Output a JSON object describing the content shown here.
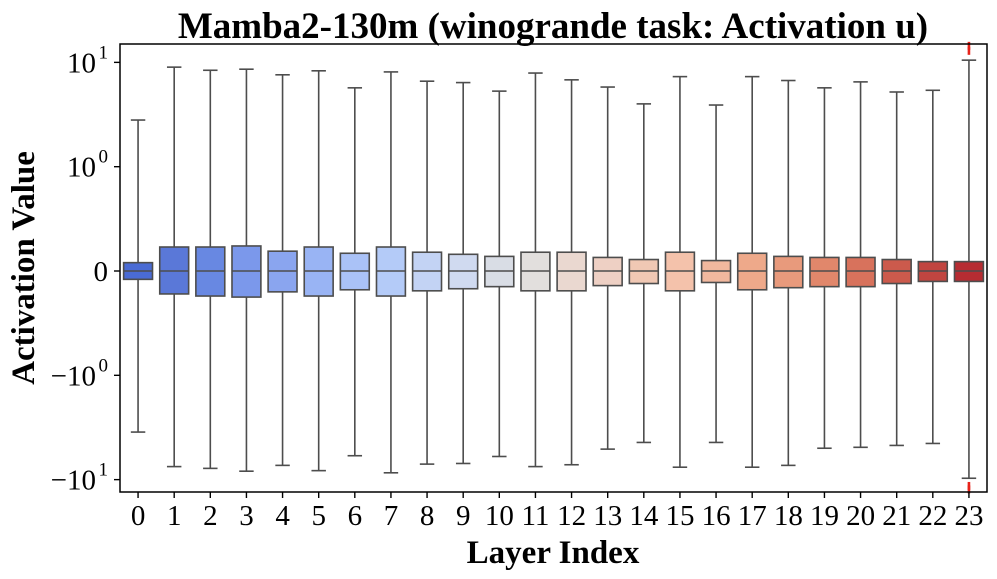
{
  "chart_data": {
    "type": "boxplot",
    "title": "Mamba2-130m (winogrande task: Activation u)",
    "xlabel": "Layer Index",
    "ylabel": "Activation Value",
    "yscale": "symlog",
    "symlog_linthresh": 1,
    "ylim": [
      -13,
      15
    ],
    "y_ticks": [
      {
        "value": 10,
        "base": "10",
        "exp": "1"
      },
      {
        "value": 1,
        "base": "10",
        "exp": "0"
      },
      {
        "value": 0,
        "base": "0",
        "exp": ""
      },
      {
        "value": -1,
        "base": "−10",
        "exp": "0"
      },
      {
        "value": -10,
        "base": "−10",
        "exp": "1"
      }
    ],
    "categories": [
      "0",
      "1",
      "2",
      "3",
      "4",
      "5",
      "6",
      "7",
      "8",
      "9",
      "10",
      "11",
      "12",
      "13",
      "14",
      "15",
      "16",
      "17",
      "18",
      "19",
      "20",
      "21",
      "22",
      "23"
    ],
    "colors": [
      "#4a6bd4",
      "#5a78d8",
      "#6888e2",
      "#7b98eb",
      "#8aa5ef",
      "#99b4f4",
      "#aac2f7",
      "#b4cbf8",
      "#c3d3f4",
      "#d0daf0",
      "#d9dde5",
      "#e2dfdd",
      "#ead8d0",
      "#eed0c4",
      "#f0c8b4",
      "#f4c2ab",
      "#f1b89e",
      "#eea98a",
      "#e89a7c",
      "#e1876b",
      "#d8725c",
      "#cc5a4c",
      "#c14540",
      "#b62c32"
    ],
    "boxes": [
      {
        "q1": -0.08,
        "median": 0.0,
        "q3": 0.08,
        "whisker_low": -3.5,
        "whisker_high": 2.8
      },
      {
        "q1": -0.22,
        "median": 0.0,
        "q3": 0.23,
        "whisker_low": -7.5,
        "whisker_high": 9.0
      },
      {
        "q1": -0.24,
        "median": 0.0,
        "q3": 0.23,
        "whisker_low": -7.8,
        "whisker_high": 8.4
      },
      {
        "q1": -0.25,
        "median": 0.0,
        "q3": 0.24,
        "whisker_low": -8.3,
        "whisker_high": 8.6
      },
      {
        "q1": -0.2,
        "median": 0.0,
        "q3": 0.19,
        "whisker_low": -7.3,
        "whisker_high": 7.6
      },
      {
        "q1": -0.24,
        "median": 0.0,
        "q3": 0.23,
        "whisker_low": -8.2,
        "whisker_high": 8.3
      },
      {
        "q1": -0.18,
        "median": 0.0,
        "q3": 0.17,
        "whisker_low": -5.9,
        "whisker_high": 5.7
      },
      {
        "q1": -0.24,
        "median": 0.0,
        "q3": 0.23,
        "whisker_low": -8.6,
        "whisker_high": 8.1
      },
      {
        "q1": -0.19,
        "median": 0.0,
        "q3": 0.18,
        "whisker_low": -7.1,
        "whisker_high": 6.6
      },
      {
        "q1": -0.17,
        "median": 0.0,
        "q3": 0.16,
        "whisker_low": -7.0,
        "whisker_high": 6.4
      },
      {
        "q1": -0.15,
        "median": 0.0,
        "q3": 0.14,
        "whisker_low": -6.0,
        "whisker_high": 5.3
      },
      {
        "q1": -0.19,
        "median": 0.0,
        "q3": 0.18,
        "whisker_low": -7.5,
        "whisker_high": 7.9
      },
      {
        "q1": -0.19,
        "median": 0.0,
        "q3": 0.18,
        "whisker_low": -7.2,
        "whisker_high": 6.8
      },
      {
        "q1": -0.14,
        "median": 0.0,
        "q3": 0.13,
        "whisker_low": -5.1,
        "whisker_high": 5.8
      },
      {
        "q1": -0.12,
        "median": 0.0,
        "q3": 0.11,
        "whisker_low": -4.4,
        "whisker_high": 4.0
      },
      {
        "q1": -0.19,
        "median": 0.0,
        "q3": 0.18,
        "whisker_low": -7.6,
        "whisker_high": 7.3
      },
      {
        "q1": -0.11,
        "median": 0.0,
        "q3": 0.1,
        "whisker_low": -4.4,
        "whisker_high": 3.9
      },
      {
        "q1": -0.18,
        "median": 0.0,
        "q3": 0.17,
        "whisker_low": -7.6,
        "whisker_high": 7.3
      },
      {
        "q1": -0.16,
        "median": 0.0,
        "q3": 0.14,
        "whisker_low": -7.3,
        "whisker_high": 6.7
      },
      {
        "q1": -0.15,
        "median": 0.0,
        "q3": 0.13,
        "whisker_low": -5.0,
        "whisker_high": 5.7
      },
      {
        "q1": -0.15,
        "median": 0.0,
        "q3": 0.13,
        "whisker_low": -4.9,
        "whisker_high": 6.5
      },
      {
        "q1": -0.12,
        "median": 0.0,
        "q3": 0.11,
        "whisker_low": -4.7,
        "whisker_high": 5.2
      },
      {
        "q1": -0.1,
        "median": 0.0,
        "q3": 0.09,
        "whisker_low": -4.5,
        "whisker_high": 5.4
      },
      {
        "q1": -0.1,
        "median": 0.0,
        "q3": 0.09,
        "whisker_low": -9.7,
        "whisker_high": 10.5
      }
    ],
    "outliers": [
      {
        "layer": "23",
        "values": [
          14.4,
          12.9,
          -11.5,
          -12.4
        ],
        "color": "#e8231a"
      }
    ],
    "grid": false,
    "legend": "none"
  }
}
